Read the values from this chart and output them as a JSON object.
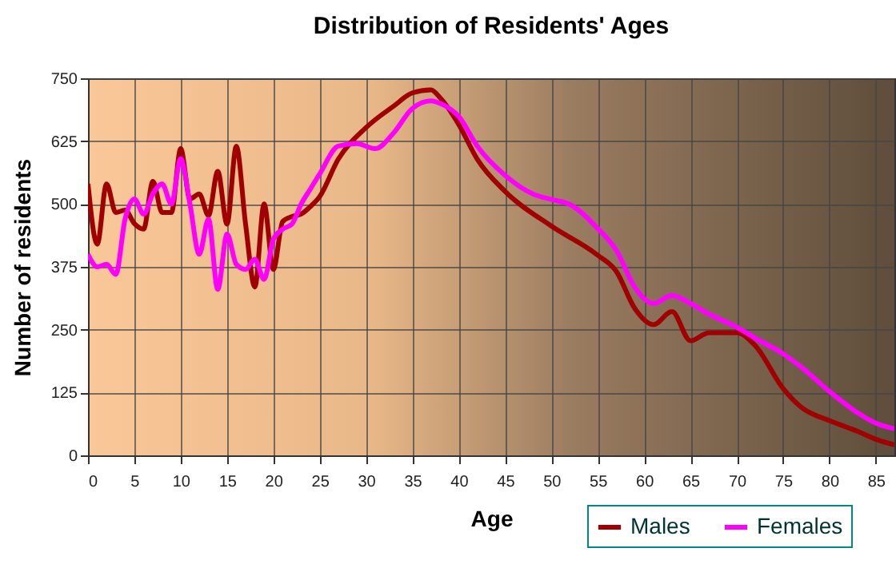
{
  "chart_data": {
    "type": "line",
    "title": "Distribution of Residents' Ages",
    "xlabel": "Age",
    "ylabel": "Number of residents",
    "xlim": [
      0,
      87
    ],
    "xticks": [
      0,
      5,
      10,
      15,
      20,
      25,
      30,
      35,
      40,
      45,
      50,
      55,
      60,
      65,
      70,
      75,
      80,
      85
    ],
    "ylim": [
      0,
      750
    ],
    "yticks": [
      0,
      125,
      250,
      375,
      500,
      625,
      750
    ],
    "grid": true,
    "legend": "bottom right",
    "series": [
      {
        "name": "Males",
        "color": "#a00000",
        "x": [
          0,
          1,
          2,
          3,
          4,
          5,
          6,
          7,
          8,
          9,
          10,
          11,
          12,
          13,
          14,
          15,
          16,
          17,
          18,
          19,
          20,
          21,
          22,
          23,
          24,
          25,
          27,
          30,
          33,
          35,
          37,
          38,
          40,
          42,
          45,
          50,
          55,
          57,
          59,
          61,
          63,
          65,
          67,
          70,
          72,
          75,
          77,
          80,
          83,
          85,
          87
        ],
        "values": [
          540,
          420,
          540,
          483,
          488,
          461,
          450,
          545,
          483,
          483,
          610,
          510,
          520,
          477,
          565,
          460,
          615,
          460,
          335,
          500,
          370,
          465,
          475,
          480,
          495,
          515,
          589,
          652,
          695,
          721,
          727,
          711,
          658,
          589,
          525,
          456,
          398,
          366,
          292,
          260,
          286,
          228,
          244,
          244,
          218,
          133,
          95,
          69,
          48,
          32,
          21
        ]
      },
      {
        "name": "Females",
        "color": "#ff00ff",
        "x": [
          0,
          1,
          2,
          3,
          4,
          5,
          6,
          7,
          8,
          9,
          10,
          11,
          12,
          13,
          14,
          15,
          16,
          17,
          18,
          19,
          20,
          21,
          22,
          23,
          24,
          25,
          27,
          29,
          31,
          33,
          35,
          37,
          38,
          40,
          42,
          45,
          48,
          50,
          52,
          55,
          57,
          59,
          61,
          63,
          65,
          67,
          70,
          72,
          75,
          77,
          80,
          83,
          85,
          87
        ],
        "values": [
          400,
          375,
          380,
          360,
          470,
          510,
          480,
          520,
          540,
          500,
          590,
          500,
          400,
          470,
          330,
          440,
          380,
          370,
          390,
          350,
          430,
          450,
          460,
          500,
          530,
          560,
          615,
          620,
          610,
          642,
          690,
          705,
          700,
          674,
          615,
          557,
          520,
          509,
          499,
          451,
          408,
          334,
          302,
          318,
          302,
          281,
          255,
          233,
          202,
          175,
          127,
          85,
          64,
          53
        ]
      }
    ]
  }
}
